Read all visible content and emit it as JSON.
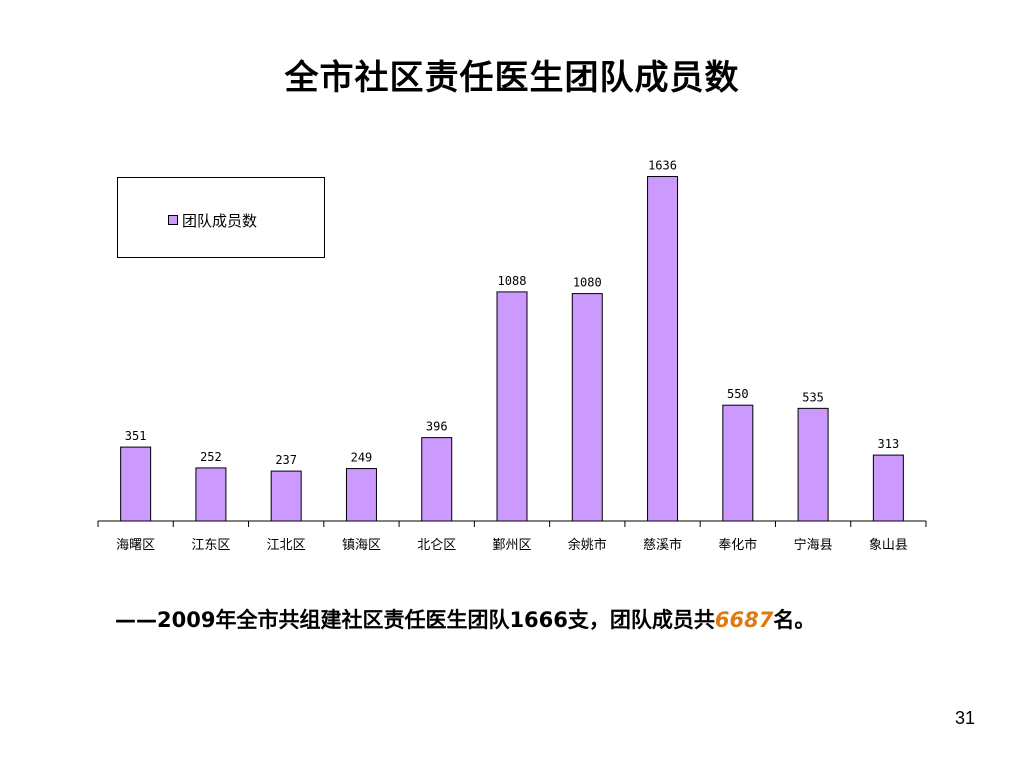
{
  "title": "全市社区责任医生团队成员数",
  "chart_data": {
    "type": "bar",
    "categories": [
      "海曙区",
      "江东区",
      "江北区",
      "镇海区",
      "北仑区",
      "鄞州区",
      "余姚市",
      "慈溪市",
      "奉化市",
      "宁海县",
      "象山县"
    ],
    "series": [
      {
        "name": "团队成员数",
        "values": [
          351,
          252,
          237,
          249,
          396,
          1088,
          1080,
          1636,
          550,
          535,
          313
        ]
      }
    ],
    "ylim": [
      0,
      1800
    ],
    "grid": false,
    "legend_position": "top-left",
    "colors": {
      "bar": "#cc99ff",
      "bar_stroke": "#000000"
    }
  },
  "legend": {
    "label": "团队成员数"
  },
  "summary": {
    "prefix": "——2009年全市共组建社区责任医生团队1666支，团队成员共",
    "highlight": "6687",
    "suffix": "名。",
    "highlight_color": "#e07a10"
  },
  "page_number": "31"
}
